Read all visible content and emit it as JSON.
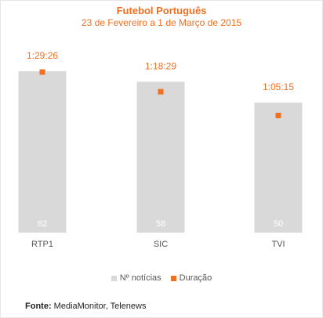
{
  "title": "Futebol Português",
  "subtitle": "23 de Fevereiro a 1 de Março de 2015",
  "legend": {
    "bars_label": "Nº notícias",
    "points_label": "Duração"
  },
  "source": {
    "prefix": "Fonte:",
    "text": "MediaMonitor, Telenews"
  },
  "colors": {
    "bar": "#d9d9d9",
    "point": "#f36f21",
    "bar_label": "#ffffff",
    "axis_label": "#555555"
  },
  "chart_data": {
    "type": "bar",
    "categories": [
      "RTP1",
      "SIC",
      "TVI"
    ],
    "series": [
      {
        "name": "Nº notícias",
        "type": "bar",
        "values": [
          62,
          58,
          50
        ]
      },
      {
        "name": "Duração",
        "type": "scatter",
        "values": [
          "1:29:26",
          "1:18:29",
          "1:05:15"
        ],
        "seconds": [
          5366,
          4709,
          3915
        ]
      }
    ],
    "title": "Futebol Português",
    "subtitle": "23 de Fevereiro a 1 de Março de 2015",
    "legend_position": "bottom-center",
    "grid": false
  }
}
